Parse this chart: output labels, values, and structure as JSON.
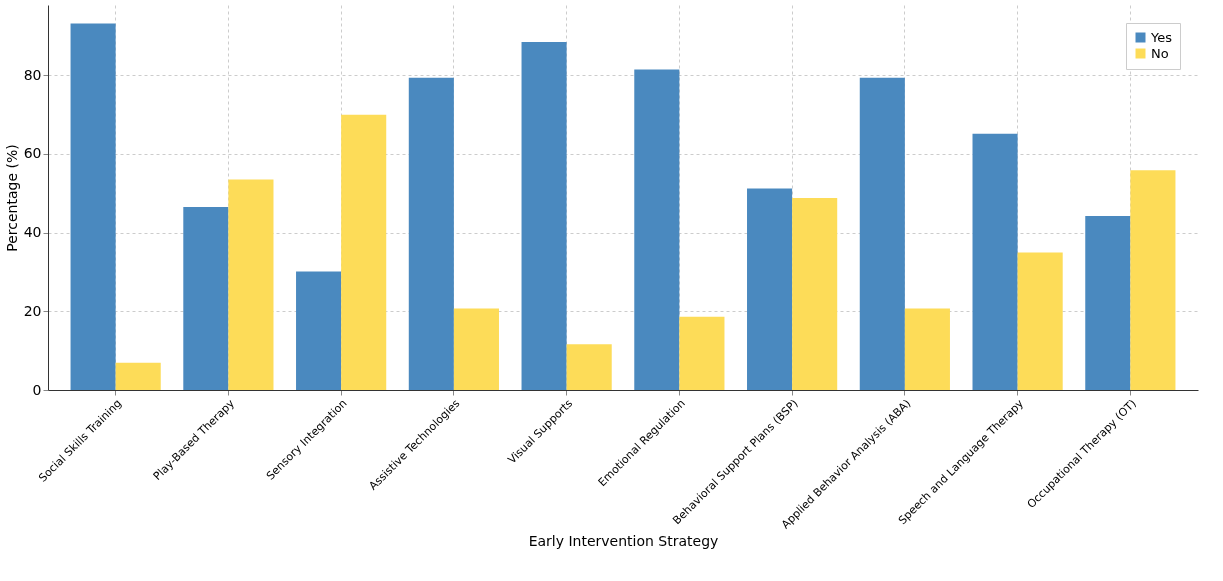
{
  "chart_data": {
    "type": "bar",
    "xlabel": "Early Intervention Strategy",
    "ylabel": "Percentage (%)",
    "categories": [
      "Social Skills Training",
      "Play-Based Therapy",
      "Sensory Integration",
      "Assistive Technologies",
      "Visual Supports",
      "Emotional Regulation",
      "Behavioral Support Plans (BSP)",
      "Applied Behavior Analysis (ABA)",
      "Speech and Language Therapy",
      "Occupational Therapy (OT)"
    ],
    "series": [
      {
        "name": "Yes",
        "color": "#4a89bf",
        "values": [
          93.1,
          46.5,
          30.1,
          79.3,
          88.4,
          81.4,
          51.2,
          79.3,
          65.1,
          44.2
        ]
      },
      {
        "name": "No",
        "color": "#fddc58",
        "values": [
          6.9,
          53.5,
          69.9,
          20.7,
          11.6,
          18.6,
          48.8,
          20.7,
          34.9,
          55.8
        ]
      }
    ],
    "ylim": [
      0,
      97.8
    ],
    "yticks": [
      0,
      20,
      40,
      60,
      80
    ],
    "grid": true,
    "legend": "top right"
  }
}
